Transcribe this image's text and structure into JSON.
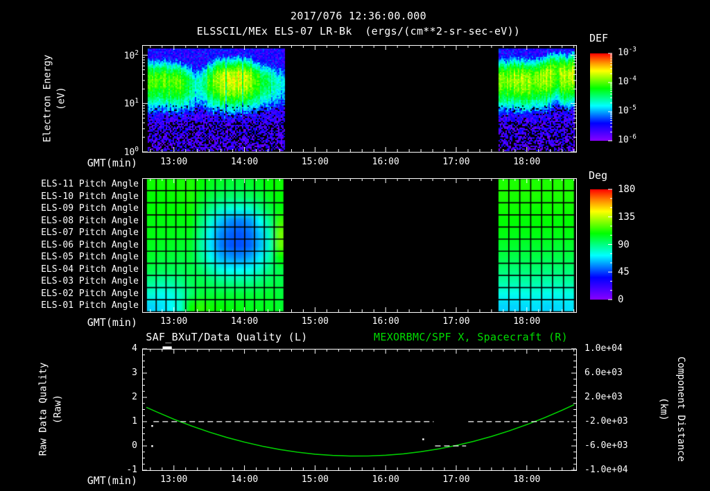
{
  "header": {
    "timestamp": "2017/076 12:36:00.000",
    "instrument_title": "ELSSCIL/MEx ELS-07 LR-Bk  (ergs/(cm**2-sr-sec-eV))"
  },
  "x_axis": {
    "label": "GMT(min)",
    "tick_hours": [
      13,
      14,
      15,
      16,
      17,
      18
    ],
    "tick_labels": [
      "13:00",
      "14:00",
      "15:00",
      "16:00",
      "17:00",
      "18:00"
    ],
    "t_start": 12.55,
    "t_end": 18.7
  },
  "colors": {
    "background": "#000000",
    "foreground": "#ffffff",
    "curve_green": "#00c800",
    "title_green": "#00dd00",
    "rainbow_stops": [
      [
        0,
        "#8800ff"
      ],
      [
        0.2,
        "#0000ff"
      ],
      [
        0.4,
        "#00ffff"
      ],
      [
        0.6,
        "#00ff00"
      ],
      [
        0.8,
        "#ffff00"
      ],
      [
        0.9,
        "#ff8800"
      ],
      [
        1,
        "#ff0000"
      ]
    ]
  },
  "chart_data": [
    {
      "id": "electron-energy-spectrogram",
      "type": "heatmap",
      "ylabel": "Electron Energy (eV)",
      "ylabel_line1": "Electron Energy",
      "ylabel_line2": "(eV)",
      "y_scale": "log",
      "y_tick_exponents": [
        2,
        1,
        0
      ],
      "y_range_ev": [
        1,
        155
      ],
      "xlabel": "GMT(min)",
      "colorbar": {
        "label": "DEF",
        "units": "ergs/(cm**2-sr-sec-eV)",
        "tick_exponents": [
          -3,
          -4,
          -5,
          -6
        ],
        "range_log10": [
          -6,
          -3
        ]
      },
      "data_blocks": [
        [
          12.61,
          14.56
        ],
        [
          17.59,
          18.675
        ]
      ],
      "band_center_log10ev": [
        [
          12.61,
          1.5
        ],
        [
          13.0,
          1.48
        ],
        [
          13.3,
          1.4
        ],
        [
          13.6,
          1.5
        ],
        [
          14.0,
          1.52
        ],
        [
          14.3,
          1.46
        ],
        [
          14.56,
          1.42
        ],
        [
          17.59,
          1.52
        ],
        [
          18.0,
          1.5
        ],
        [
          18.25,
          1.55
        ],
        [
          18.42,
          1.68
        ],
        [
          18.55,
          1.58
        ],
        [
          18.675,
          1.63
        ]
      ],
      "band_peak_log10def": [
        [
          12.61,
          -4.05
        ],
        [
          12.9,
          -4.0
        ],
        [
          13.15,
          -4.1
        ],
        [
          13.3,
          -4.75
        ],
        [
          13.42,
          -4.5
        ],
        [
          13.55,
          -4.0
        ],
        [
          13.7,
          -3.75
        ],
        [
          13.85,
          -3.7
        ],
        [
          14.0,
          -3.65
        ],
        [
          14.1,
          -3.85
        ],
        [
          14.2,
          -4.15
        ],
        [
          14.35,
          -4.5
        ],
        [
          14.56,
          -4.85
        ],
        [
          17.59,
          -3.95
        ],
        [
          17.8,
          -3.9
        ],
        [
          18.0,
          -3.9
        ],
        [
          18.2,
          -3.85
        ],
        [
          18.35,
          -3.8
        ],
        [
          18.42,
          -4.1
        ],
        [
          18.5,
          -3.8
        ],
        [
          18.675,
          -3.8
        ]
      ],
      "band_sigma_decades": {
        "above": 0.26,
        "below": 0.42
      },
      "background_log10def": -5.5
    },
    {
      "id": "pitch-angle-grid",
      "type": "heatmap",
      "row_labels": [
        "ELS-11 Pitch Angle",
        "ELS-10 Pitch Angle",
        "ELS-09 Pitch Angle",
        "ELS-08 Pitch Angle",
        "ELS-07 Pitch Angle",
        "ELS-06 Pitch Angle",
        "ELS-05 Pitch Angle",
        "ELS-04 Pitch Angle",
        "ELS-03 Pitch Angle",
        "ELS-02 Pitch Angle",
        "ELS-01 Pitch Angle"
      ],
      "xlabel": "GMT(min)",
      "colorbar": {
        "label": "Deg",
        "tick_labels": [
          "180",
          "135",
          "90",
          "45",
          "0"
        ],
        "range_deg": [
          0,
          180
        ]
      },
      "left_block": {
        "t_start": 12.61,
        "t_end": 14.56,
        "columns": 14,
        "values_deg": [
          [
            110,
            110,
            110,
            111,
            112,
            108,
            104,
            102,
            100,
            100,
            102,
            104,
            108,
            110
          ],
          [
            108,
            108,
            109,
            110,
            112,
            104,
            98,
            94,
            92,
            92,
            94,
            98,
            104,
            108
          ],
          [
            108,
            108,
            108,
            108,
            110,
            98,
            88,
            80,
            76,
            76,
            78,
            88,
            98,
            106
          ],
          [
            106,
            106,
            106,
            106,
            107,
            92,
            78,
            64,
            56,
            54,
            58,
            72,
            88,
            116
          ],
          [
            106,
            105,
            105,
            104,
            104,
            88,
            70,
            56,
            50,
            48,
            52,
            64,
            82,
            124
          ],
          [
            104,
            103,
            103,
            102,
            102,
            86,
            68,
            54,
            48,
            47,
            50,
            62,
            80,
            122
          ],
          [
            102,
            100,
            100,
            99,
            100,
            88,
            74,
            62,
            58,
            56,
            60,
            70,
            84,
            108
          ],
          [
            98,
            96,
            96,
            96,
            98,
            94,
            84,
            76,
            72,
            72,
            74,
            80,
            90,
            98
          ],
          [
            88,
            85,
            86,
            90,
            96,
            98,
            94,
            90,
            88,
            88,
            88,
            92,
            96,
            98
          ],
          [
            78,
            74,
            76,
            82,
            92,
            100,
            100,
            100,
            100,
            100,
            100,
            100,
            102,
            100
          ],
          [
            66,
            68,
            72,
            80,
            108,
            114,
            110,
            108,
            106,
            106,
            104,
            104,
            104,
            102
          ]
        ]
      },
      "right_block": {
        "t_start": 17.59,
        "t_end": 18.675,
        "columns": 7,
        "values_deg": [
          [
            112,
            112,
            113,
            112,
            112,
            113,
            112
          ],
          [
            112,
            111,
            112,
            112,
            111,
            112,
            112
          ],
          [
            110,
            110,
            110,
            109,
            110,
            110,
            110
          ],
          [
            108,
            108,
            107,
            108,
            108,
            107,
            108
          ],
          [
            106,
            105,
            106,
            106,
            105,
            106,
            106
          ],
          [
            102,
            102,
            101,
            102,
            102,
            101,
            102
          ],
          [
            98,
            97,
            98,
            98,
            97,
            98,
            98
          ],
          [
            92,
            91,
            92,
            92,
            91,
            92,
            92
          ],
          [
            85,
            84,
            85,
            85,
            84,
            85,
            86
          ],
          [
            75,
            74,
            75,
            76,
            74,
            75,
            76
          ],
          [
            66,
            66,
            67,
            68,
            66,
            67,
            68
          ]
        ]
      }
    },
    {
      "id": "quality-and-distance",
      "type": "line",
      "title_left": "SAF_BXuT/Data Quality (L)",
      "title_right": "MEXORBMC/SPF X, Spacecraft (R)",
      "xlabel": "GMT(min)",
      "ylabel_left": "Raw Data Quality (Raw)",
      "ylabel_left_line1": "Raw Data Quality",
      "ylabel_left_line2": "(Raw)",
      "ylabel_right": "Component Distance (km)",
      "ylabel_right_line1": "Component Distance",
      "ylabel_right_line2": "(km)",
      "y_left_ticks": [
        "4",
        "3",
        "2",
        "1",
        "0",
        "-1"
      ],
      "y_left_range": [
        -1,
        4
      ],
      "y_right_ticks": [
        "1.0e+04",
        "6.0e+03",
        "2.0e+03",
        "-2.0e+03",
        "-6.0e+03",
        "-1.0e+04"
      ],
      "y_right_range_km": [
        -10000,
        10000
      ],
      "series": [
        {
          "name": "MEXORBMC/SPF X, Spacecraft",
          "axis": "right",
          "style": "solid",
          "points_t_km": [
            [
              12.61,
              366
            ],
            [
              12.75,
              -370
            ],
            [
              13.0,
              -1596
            ],
            [
              13.25,
              -2710
            ],
            [
              13.5,
              -3711
            ],
            [
              13.75,
              -4600
            ],
            [
              14.0,
              -5376
            ],
            [
              14.25,
              -6040
            ],
            [
              14.5,
              -6591
            ],
            [
              14.75,
              -7030
            ],
            [
              15.0,
              -7356
            ],
            [
              15.25,
              -7570
            ],
            [
              15.5,
              -7671
            ],
            [
              15.75,
              -7660
            ],
            [
              16.0,
              -7536
            ],
            [
              16.25,
              -7300
            ],
            [
              16.5,
              -6951
            ],
            [
              16.75,
              -6490
            ],
            [
              17.0,
              -5916
            ],
            [
              17.25,
              -5230
            ],
            [
              17.5,
              -4431
            ],
            [
              17.75,
              -3520
            ],
            [
              18.0,
              -2496
            ],
            [
              18.25,
              -1360
            ],
            [
              18.5,
              -111
            ],
            [
              18.67,
              802
            ]
          ]
        },
        {
          "name": "SAF_BXuT/Data Quality",
          "axis": "left",
          "style": "dashed",
          "segments": [
            {
              "t0": 12.71,
              "t1": 16.68,
              "value": 1
            },
            {
              "t0": 16.7,
              "t1": 17.14,
              "value": 0
            },
            {
              "t0": 17.17,
              "t1": 18.6,
              "value": 1
            }
          ],
          "dots": [
            [
              12.69,
              0.83
            ],
            [
              12.69,
              0.0
            ],
            [
              16.53,
              0.28
            ]
          ],
          "clipped_top_marker": {
            "t0": 12.84,
            "t1": 12.97,
            "value": 4
          }
        }
      ]
    }
  ]
}
